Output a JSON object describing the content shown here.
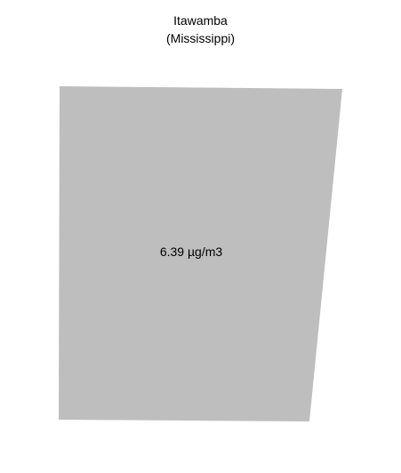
{
  "map": {
    "county": "Itawamba",
    "state": "(Mississippi)",
    "value_label": "6.39 µg/m3",
    "fill_color": "#bebebe"
  }
}
